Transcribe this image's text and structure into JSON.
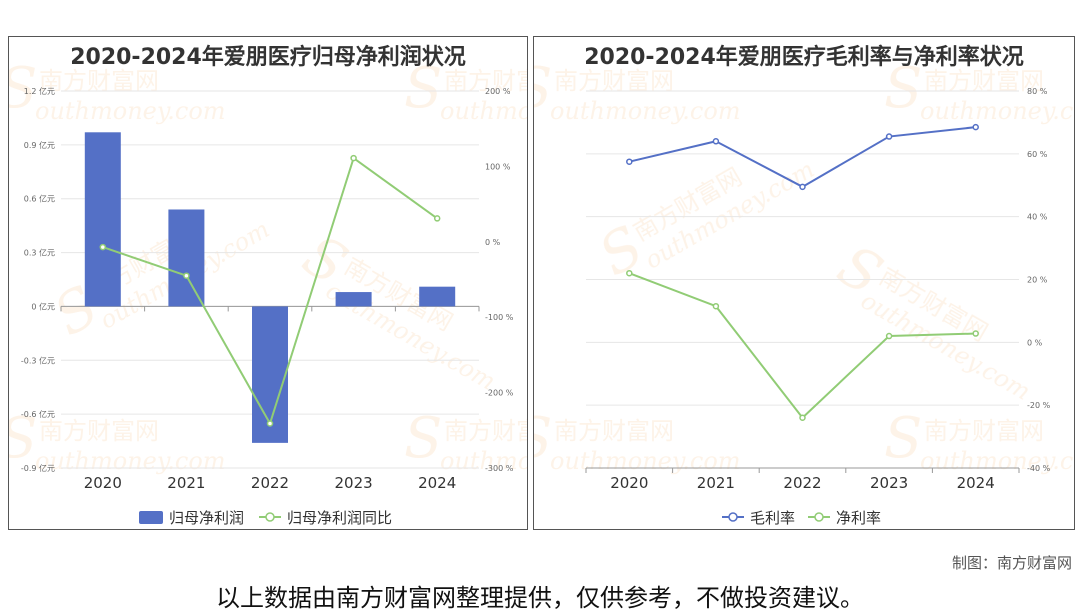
{
  "charts": {
    "left": {
      "title": "2020-2024年爱朋医疗归母净利润状况",
      "legend": [
        "归母净利润",
        "归母净利润同比"
      ]
    },
    "right": {
      "title": "2020-2024年爱朋医疗毛利率与净利率状况",
      "legend": [
        "毛利率",
        "净利率"
      ]
    }
  },
  "footer": {
    "credit": "制图：南方财富网",
    "disclaimer": "以上数据由南方财富网整理提供，仅供参考，不做投资建议。"
  },
  "watermark": {
    "cn": "南方财富网",
    "en": "outhmoney.com",
    "s": "S"
  },
  "colors": {
    "bar": "#5470c6",
    "line_blue": "#5470c6",
    "line_green": "#91cc75",
    "grid": "#e6e6e6",
    "axis": "#666666"
  },
  "chart_data": [
    {
      "type": "bar",
      "title": "2020-2024年爱朋医疗归母净利润状况",
      "categories": [
        "2020",
        "2021",
        "2022",
        "2023",
        "2024"
      ],
      "series": [
        {
          "name": "归母净利润",
          "type": "bar",
          "axis": "left",
          "values": [
            0.97,
            0.54,
            -0.76,
            0.08,
            0.11
          ]
        },
        {
          "name": "归母净利润同比",
          "type": "line",
          "axis": "right",
          "values": [
            -7,
            -45,
            -241,
            111,
            31
          ]
        }
      ],
      "y_left": {
        "ticks": [
          "1.2 亿元",
          "0.9 亿元",
          "0.6 亿元",
          "0.3 亿元",
          "0 亿元",
          "-0.3 亿元",
          "-0.6 亿元",
          "-0.9 亿元"
        ],
        "range": [
          -0.9,
          1.2
        ]
      },
      "y_right": {
        "ticks": [
          "200 %",
          "100 %",
          "0 %",
          "-100 %",
          "-200 %",
          "-300 %"
        ],
        "range": [
          -300,
          200
        ]
      },
      "legend_position": "bottom",
      "grid": true
    },
    {
      "type": "line",
      "title": "2020-2024年爱朋医疗毛利率与净利率状况",
      "categories": [
        "2020",
        "2021",
        "2022",
        "2023",
        "2024"
      ],
      "series": [
        {
          "name": "毛利率",
          "values": [
            57.5,
            64,
            49.5,
            65.5,
            68.5
          ]
        },
        {
          "name": "净利率",
          "values": [
            22,
            11.5,
            -24,
            2,
            2.8
          ]
        }
      ],
      "y_right": {
        "ticks": [
          "80 %",
          "60 %",
          "40 %",
          "20 %",
          "0 %",
          "-20 %",
          "-40 %"
        ],
        "range": [
          -40,
          80
        ]
      },
      "legend_position": "bottom",
      "grid": true
    }
  ]
}
